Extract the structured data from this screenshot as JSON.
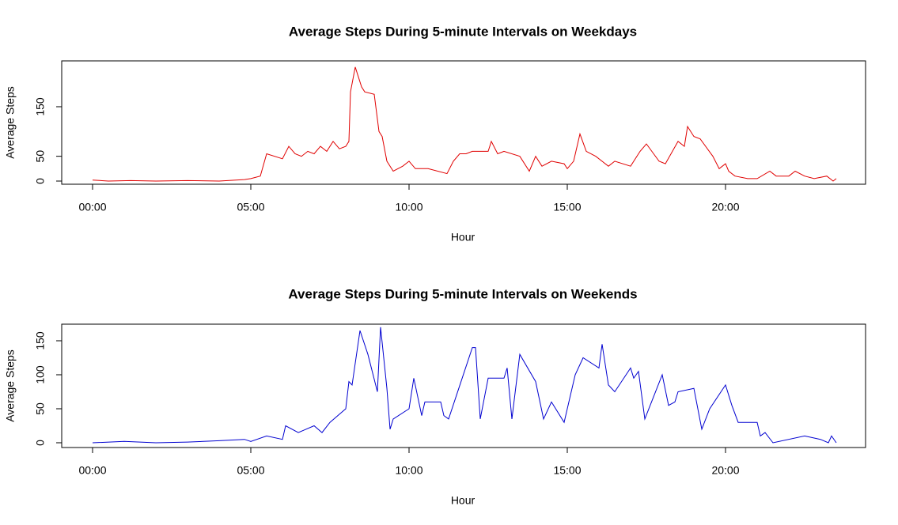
{
  "chart_data": [
    {
      "type": "line",
      "title": "Average Steps During 5-minute Intervals on Weekdays",
      "xlabel": "Hour",
      "ylabel": "Average Steps",
      "x": [
        0,
        0.5,
        1.2,
        2,
        3,
        4,
        4.8,
        5.0,
        5.3,
        5.5,
        6.0,
        6.2,
        6.4,
        6.6,
        6.8,
        7.0,
        7.2,
        7.4,
        7.6,
        7.8,
        8.0,
        8.1,
        8.15,
        8.3,
        8.5,
        8.6,
        8.9,
        9.05,
        9.15,
        9.3,
        9.5,
        9.8,
        10.0,
        10.2,
        10.4,
        10.6,
        11.2,
        11.4,
        11.6,
        11.8,
        12.0,
        12.5,
        12.6,
        12.8,
        13.0,
        13.5,
        13.8,
        14.0,
        14.2,
        14.5,
        14.9,
        15.0,
        15.2,
        15.4,
        15.6,
        15.9,
        16.3,
        16.5,
        17.0,
        17.3,
        17.5,
        17.9,
        18.1,
        18.5,
        18.7,
        18.8,
        19.0,
        19.2,
        19.6,
        19.8,
        20.0,
        20.1,
        20.3,
        20.7,
        21.0,
        21.4,
        21.6,
        22.0,
        22.2,
        22.5,
        22.8,
        23.2,
        23.4,
        23.5
      ],
      "series": [
        {
          "name": "Weekdays",
          "color": "#e00000",
          "values": [
            2,
            0,
            1,
            0,
            1,
            0,
            3,
            5,
            10,
            55,
            45,
            70,
            55,
            50,
            60,
            55,
            70,
            60,
            80,
            65,
            70,
            80,
            180,
            230,
            190,
            180,
            175,
            100,
            90,
            40,
            20,
            30,
            40,
            25,
            25,
            25,
            15,
            40,
            55,
            55,
            60,
            60,
            80,
            55,
            60,
            50,
            20,
            50,
            30,
            40,
            35,
            25,
            40,
            95,
            60,
            50,
            30,
            40,
            30,
            60,
            75,
            40,
            35,
            80,
            70,
            110,
            90,
            85,
            50,
            25,
            35,
            20,
            10,
            5,
            5,
            20,
            10,
            10,
            20,
            10,
            5,
            10,
            0,
            5
          ]
        }
      ],
      "xlim": [
        -0.975,
        24.425
      ],
      "ylim": [
        -6.4,
        242.5
      ],
      "yticks": [
        0,
        50,
        150
      ],
      "xticks": [
        {
          "value": 0,
          "label": "00:00"
        },
        {
          "value": 5,
          "label": "05:00"
        },
        {
          "value": 10,
          "label": "10:00"
        },
        {
          "value": 15,
          "label": "15:00"
        },
        {
          "value": 20,
          "label": "20:00"
        }
      ]
    },
    {
      "type": "line",
      "title": "Average Steps During 5-minute Intervals on Weekends",
      "xlabel": "Hour",
      "ylabel": "Average Steps",
      "x": [
        0,
        1,
        2,
        3,
        4,
        4.8,
        5.0,
        5.5,
        6.0,
        6.1,
        6.5,
        7.0,
        7.25,
        7.5,
        8.0,
        8.1,
        8.2,
        8.45,
        8.7,
        9.0,
        9.1,
        9.3,
        9.4,
        9.5,
        10.0,
        10.15,
        10.4,
        10.5,
        11.0,
        11.1,
        11.25,
        11.5,
        12.0,
        12.1,
        12.25,
        12.5,
        13.0,
        13.1,
        13.25,
        13.5,
        14.0,
        14.25,
        14.5,
        14.9,
        15.25,
        15.5,
        16.0,
        16.1,
        16.3,
        16.5,
        17.0,
        17.1,
        17.25,
        17.45,
        18.0,
        18.2,
        18.4,
        18.5,
        19.0,
        19.25,
        19.5,
        20.0,
        20.2,
        20.4,
        21.0,
        21.1,
        21.25,
        21.5,
        22.5,
        23.0,
        23.25,
        23.35,
        23.5
      ],
      "series": [
        {
          "name": "Weekends",
          "color": "#0000d0",
          "values": [
            0,
            2,
            0,
            1,
            3,
            5,
            2,
            10,
            5,
            25,
            15,
            25,
            15,
            30,
            50,
            90,
            85,
            165,
            130,
            75,
            170,
            80,
            20,
            35,
            50,
            95,
            40,
            60,
            60,
            40,
            35,
            70,
            140,
            140,
            35,
            95,
            95,
            110,
            35,
            130,
            90,
            35,
            60,
            30,
            100,
            125,
            110,
            145,
            85,
            75,
            110,
            95,
            105,
            35,
            100,
            55,
            60,
            75,
            80,
            20,
            50,
            85,
            55,
            30,
            30,
            10,
            15,
            0,
            10,
            5,
            0,
            10,
            0
          ]
        }
      ],
      "xlim": [
        -0.975,
        24.425
      ],
      "ylim": [
        -7,
        174.4
      ],
      "yticks": [
        0,
        50,
        100,
        150
      ],
      "xticks": [
        {
          "value": 0,
          "label": "00:00"
        },
        {
          "value": 5,
          "label": "05:00"
        },
        {
          "value": 10,
          "label": "10:00"
        },
        {
          "value": 15,
          "label": "15:00"
        },
        {
          "value": 20,
          "label": "20:00"
        }
      ]
    }
  ]
}
